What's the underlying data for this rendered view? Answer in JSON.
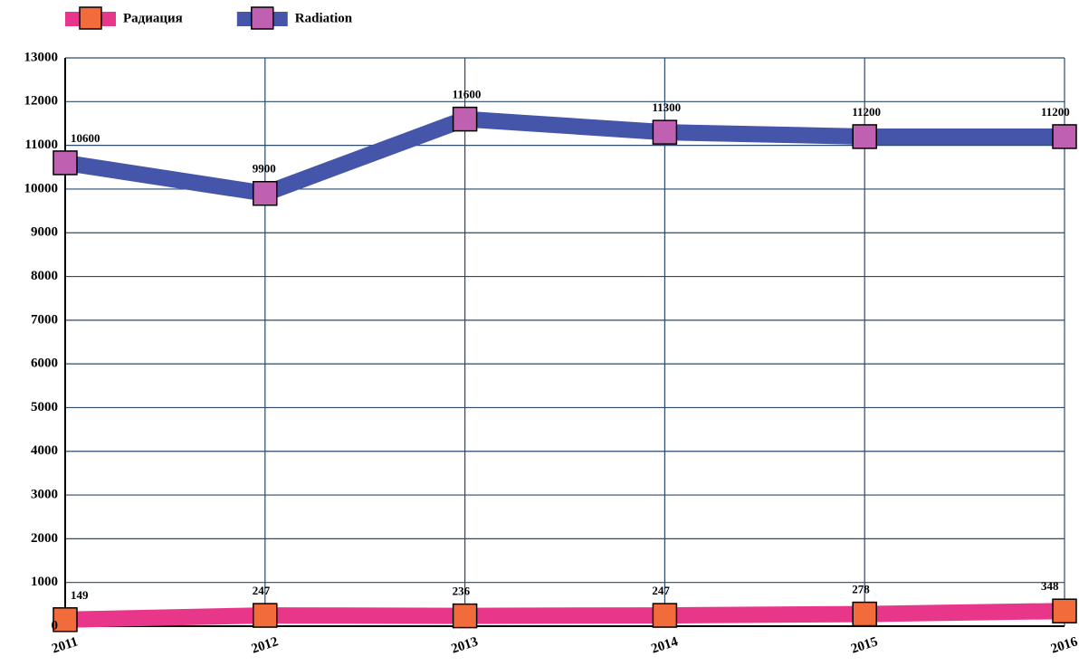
{
  "chart_data": {
    "type": "line",
    "categories": [
      "2011",
      "2012",
      "2013",
      "2014",
      "2015",
      "2016"
    ],
    "series": [
      {
        "name": "Радиация",
        "color": "#e8368a",
        "marker_color": "#f26b3a",
        "values": [
          149,
          247,
          236,
          247,
          278,
          348
        ]
      },
      {
        "name": "Radiation",
        "color": "#4455aa",
        "marker_color": "#c060b0",
        "values": [
          10600,
          9900,
          11600,
          11300,
          11200,
          11200
        ]
      }
    ],
    "ylim": [
      0,
      13000
    ],
    "yticks": [
      0,
      1000,
      2000,
      3000,
      4000,
      5000,
      6000,
      7000,
      8000,
      9000,
      10000,
      11000,
      12000,
      13000
    ],
    "grid": true
  }
}
